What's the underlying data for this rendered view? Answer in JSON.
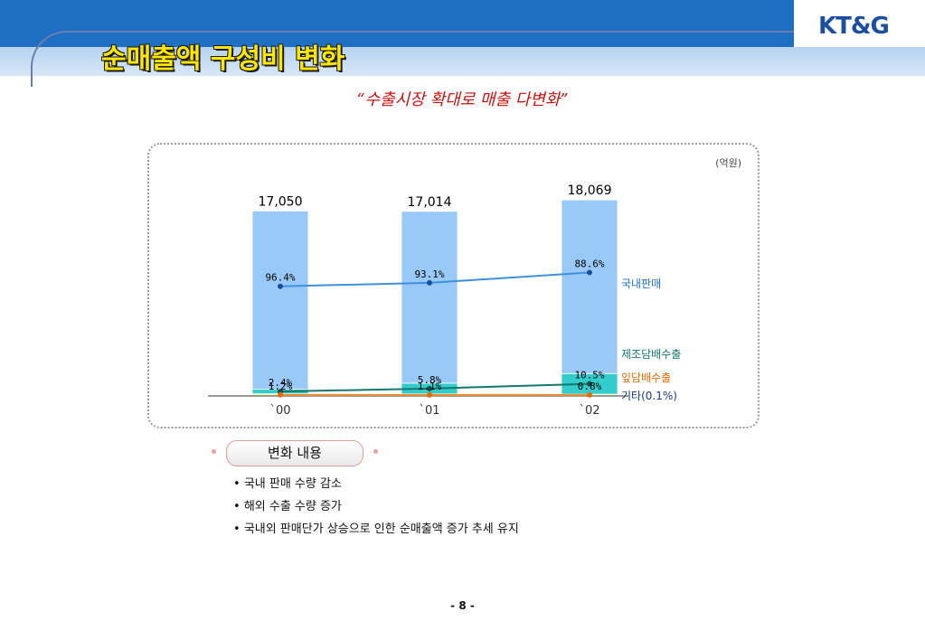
{
  "header": {
    "title": "순매출액 구성비 변화",
    "logo": "KT&G",
    "subtitle": "“수출시장 확대로 매출 다변화”"
  },
  "colors": {
    "domestic": "#99caf7",
    "manufacturing_export": "#33cccc",
    "leaf_export": "#ffff99",
    "other": "#0b2f5e",
    "line_domestic": "#3d8fe0",
    "line_manufacturing": "#14786e",
    "line_leaf": "#f08c2a"
  },
  "chart_data": {
    "type": "bar",
    "stacked": true,
    "unit_label": "(억원)",
    "categories": [
      "`00",
      "`01",
      "`02"
    ],
    "totals": [
      17050,
      17014,
      18069
    ],
    "total_labels": [
      "17,050",
      "17,014",
      "18,069"
    ],
    "ylim": [
      0,
      20000
    ],
    "series": [
      {
        "name": "국내판매",
        "percent": [
          96.4,
          93.1,
          88.6
        ],
        "labels": [
          "96.4%",
          "93.1%",
          "88.6%"
        ]
      },
      {
        "name": "제조담배수출",
        "percent": [
          2.4,
          5.8,
          10.5
        ],
        "labels": [
          "2.4%",
          "5.8%",
          "10.5%"
        ]
      },
      {
        "name": "잎담배수출",
        "percent": [
          1.2,
          1.1,
          0.8
        ],
        "labels": [
          "1.2%",
          "1.1%",
          "0.8%"
        ]
      },
      {
        "name": "기타",
        "percent": [
          0,
          0,
          0.1
        ],
        "labels": [
          "",
          "",
          ""
        ]
      }
    ],
    "other_legend_value": "(0.1%)"
  },
  "summary": {
    "heading": "변화 내용",
    "bullets": [
      "국내 판매 수량 감소",
      "해외 수출 수량 증가",
      "국내외 판매단가 상승으로 인한 순매출액 증가 추세 유지"
    ]
  },
  "footer": {
    "page": "- 8 -"
  }
}
